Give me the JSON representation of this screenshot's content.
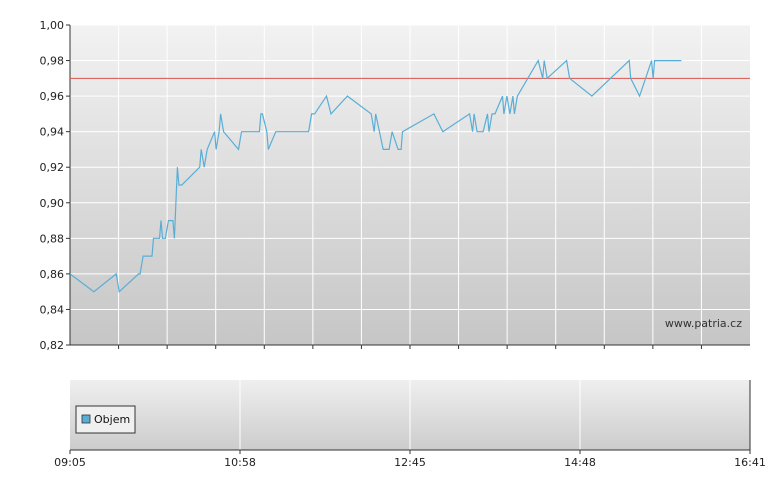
{
  "chart_data": [
    {
      "type": "line",
      "x_ticks": [
        "09:05",
        "10:58",
        "12:45",
        "14:48",
        "16:41"
      ],
      "y_ticks": [
        "0,82",
        "0,84",
        "0,86",
        "0,88",
        "0,90",
        "0,92",
        "0,94",
        "0,96",
        "0,98",
        "1,00"
      ],
      "ylim": [
        0.82,
        1.0
      ],
      "xlim": [
        "09:05",
        "16:41"
      ],
      "grid": true,
      "reference_line": {
        "value": 0.97,
        "color": "#d9534f"
      },
      "series": [
        {
          "color": "#5aaed6",
          "points": [
            [
              "09:05",
              0.86
            ],
            [
              "09:21",
              0.85
            ],
            [
              "09:36",
              0.86
            ],
            [
              "09:38",
              0.85
            ],
            [
              "09:51",
              0.86
            ],
            [
              "09:52",
              0.86
            ],
            [
              "09:54",
              0.87
            ],
            [
              "10:00",
              0.87
            ],
            [
              "10:01",
              0.88
            ],
            [
              "10:05",
              0.88
            ],
            [
              "10:06",
              0.89
            ],
            [
              "10:07",
              0.88
            ],
            [
              "10:09",
              0.88
            ],
            [
              "10:11",
              0.89
            ],
            [
              "10:14",
              0.89
            ],
            [
              "10:15",
              0.88
            ],
            [
              "10:17",
              0.92
            ],
            [
              "10:18",
              0.91
            ],
            [
              "10:20",
              0.91
            ],
            [
              "10:32",
              0.92
            ],
            [
              "10:33",
              0.93
            ],
            [
              "10:35",
              0.92
            ],
            [
              "10:37",
              0.93
            ],
            [
              "10:42",
              0.94
            ],
            [
              "10:43",
              0.93
            ],
            [
              "10:45",
              0.94
            ],
            [
              "10:46",
              0.95
            ],
            [
              "10:48",
              0.94
            ],
            [
              "10:58",
              0.93
            ],
            [
              "11:00",
              0.94
            ],
            [
              "11:12",
              0.94
            ],
            [
              "11:13",
              0.95
            ],
            [
              "11:14",
              0.95
            ],
            [
              "11:17",
              0.94
            ],
            [
              "11:18",
              0.93
            ],
            [
              "11:23",
              0.94
            ],
            [
              "11:45",
              0.94
            ],
            [
              "11:47",
              0.95
            ],
            [
              "11:49",
              0.95
            ],
            [
              "11:57",
              0.96
            ],
            [
              "12:00",
              0.95
            ],
            [
              "12:11",
              0.96
            ],
            [
              "12:27",
              0.95
            ],
            [
              "12:29",
              0.94
            ],
            [
              "12:30",
              0.95
            ],
            [
              "12:35",
              0.93
            ],
            [
              "12:39",
              0.93
            ],
            [
              "12:41",
              0.94
            ],
            [
              "12:45",
              0.93
            ],
            [
              "12:47",
              0.93
            ],
            [
              "12:48",
              0.94
            ],
            [
              "13:09",
              0.95
            ],
            [
              "13:15",
              0.94
            ],
            [
              "13:33",
              0.95
            ],
            [
              "13:35",
              0.94
            ],
            [
              "13:36",
              0.95
            ],
            [
              "13:38",
              0.94
            ],
            [
              "13:42",
              0.94
            ],
            [
              "13:45",
              0.95
            ],
            [
              "13:46",
              0.94
            ],
            [
              "13:48",
              0.95
            ],
            [
              "13:50",
              0.95
            ],
            [
              "13:55",
              0.96
            ],
            [
              "13:56",
              0.95
            ],
            [
              "13:58",
              0.96
            ],
            [
              "14:00",
              0.95
            ],
            [
              "14:02",
              0.96
            ],
            [
              "14:03",
              0.95
            ],
            [
              "14:05",
              0.96
            ],
            [
              "14:12",
              0.97
            ],
            [
              "14:19",
              0.98
            ],
            [
              "14:22",
              0.97
            ],
            [
              "14:23",
              0.98
            ],
            [
              "14:25",
              0.97
            ],
            [
              "14:38",
              0.98
            ],
            [
              "14:40",
              0.97
            ],
            [
              "14:55",
              0.96
            ],
            [
              "15:20",
              0.98
            ],
            [
              "15:21",
              0.97
            ],
            [
              "15:27",
              0.96
            ],
            [
              "15:31",
              0.97
            ],
            [
              "15:35",
              0.98
            ],
            [
              "15:36",
              0.97
            ],
            [
              "15:37",
              0.98
            ],
            [
              "15:55",
              0.98
            ]
          ]
        }
      ]
    },
    {
      "type": "bar",
      "legend": [
        "Objem"
      ],
      "legend_color": "#5aaed6",
      "x_ticks": [
        "09:05",
        "10:58",
        "12:45",
        "14:48",
        "16:41"
      ]
    }
  ],
  "watermark": "www.patria.cz"
}
